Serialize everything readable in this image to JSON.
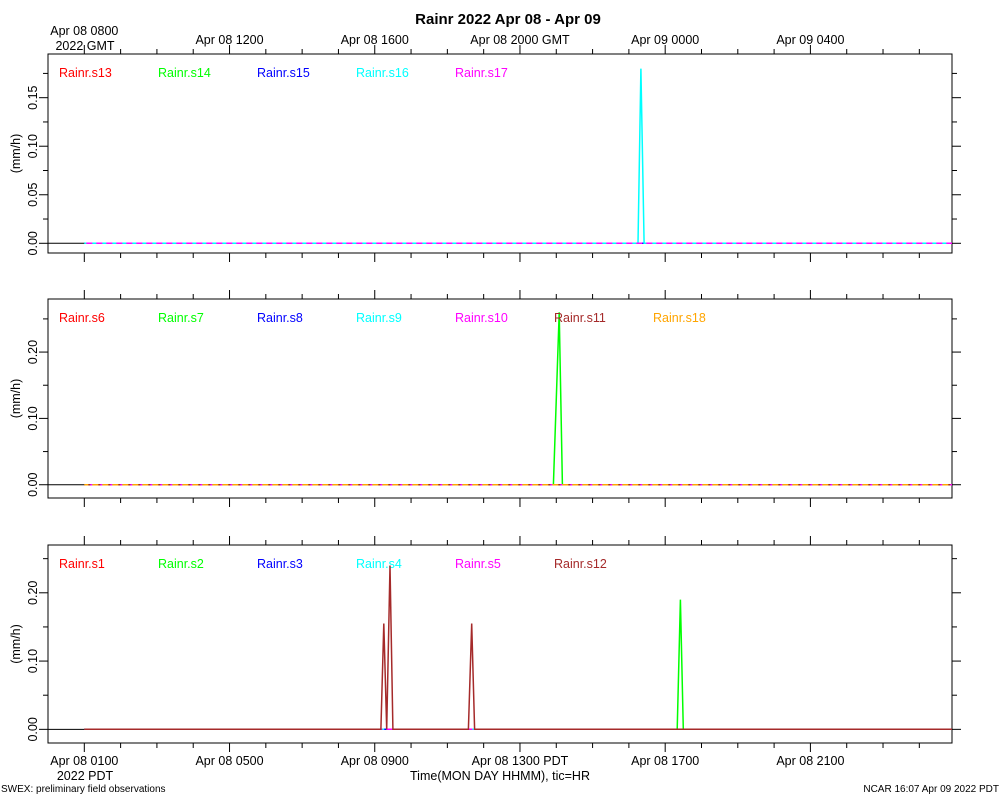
{
  "title": "Rainr 2022 Apr 08 - Apr 09",
  "top_axis": {
    "labels": [
      "Apr 08 0800",
      "Apr 08 1200",
      "Apr 08 1600",
      "Apr 08 2000 GMT",
      "Apr 09 0000",
      "Apr 09 0400"
    ],
    "year_label": "2022 GMT"
  },
  "bottom_axis": {
    "labels": [
      "Apr 08 0100",
      "Apr 08 0500",
      "Apr 08 0900",
      "Apr 08 1300 PDT",
      "Apr 08 1700",
      "Apr 08 2100"
    ],
    "year_label": "2022 PDT",
    "xlabel": "Time(MON DAY HHMM), tic=HR"
  },
  "footer": {
    "left": "SWEX: preliminary field observations",
    "right": "NCAR 16:07 Apr 09 2022 PDT"
  },
  "chart_data": [
    {
      "type": "line",
      "ylabel": "(mm/h)",
      "ylim": [
        -0.01,
        0.195
      ],
      "yticks": [
        "0.00",
        "0.05",
        "0.10",
        "0.15"
      ],
      "series": [
        {
          "name": "Rainr.s13",
          "color": "#ff0000",
          "x": [
            0,
            23.9
          ],
          "y": [
            0,
            0
          ]
        },
        {
          "name": "Rainr.s14",
          "color": "#00ff00",
          "x": [
            0,
            23.9
          ],
          "y": [
            0,
            0
          ]
        },
        {
          "name": "Rainr.s15",
          "color": "#0000ff",
          "x": [
            0,
            23.9
          ],
          "y": [
            0,
            0
          ]
        },
        {
          "name": "Rainr.s16",
          "color": "#00ffff",
          "x": [
            0,
            15.25,
            15.33,
            15.42,
            23.9
          ],
          "y": [
            0,
            0,
            0.18,
            0,
            0
          ]
        },
        {
          "name": "Rainr.s17",
          "color": "#ff00ff",
          "x": [
            0,
            23.9
          ],
          "y": [
            0,
            0
          ]
        }
      ]
    },
    {
      "type": "line",
      "ylabel": "(mm/h)",
      "ylim": [
        -0.02,
        0.28
      ],
      "yticks": [
        "0.00",
        "0.10",
        "0.20"
      ],
      "series": [
        {
          "name": "Rainr.s6",
          "color": "#ff0000",
          "x": [
            0,
            23.9
          ],
          "y": [
            0,
            0
          ]
        },
        {
          "name": "Rainr.s7",
          "color": "#00ff00",
          "x": [
            0,
            12.92,
            13.08,
            13.17,
            23.9
          ],
          "y": [
            0,
            0,
            0.26,
            0,
            0
          ]
        },
        {
          "name": "Rainr.s8",
          "color": "#0000ff",
          "x": [
            0,
            23.9
          ],
          "y": [
            0,
            0
          ]
        },
        {
          "name": "Rainr.s9",
          "color": "#00ffff",
          "x": [
            0,
            23.9
          ],
          "y": [
            0,
            0
          ]
        },
        {
          "name": "Rainr.s10",
          "color": "#ff00ff",
          "x": [
            0,
            23.9
          ],
          "y": [
            0,
            0
          ]
        },
        {
          "name": "Rainr.s11",
          "color": "#a52a2a",
          "x": [
            0,
            23.9
          ],
          "y": [
            0,
            0
          ]
        },
        {
          "name": "Rainr.s18",
          "color": "#ffa500",
          "x": [
            0,
            23.9
          ],
          "y": [
            0,
            0
          ]
        }
      ]
    },
    {
      "type": "line",
      "ylabel": "(mm/h)",
      "ylim": [
        -0.02,
        0.27
      ],
      "yticks": [
        "0.00",
        "0.10",
        "0.20"
      ],
      "series": [
        {
          "name": "Rainr.s1",
          "color": "#ff0000",
          "x": [
            0,
            23.9
          ],
          "y": [
            0,
            0
          ]
        },
        {
          "name": "Rainr.s2",
          "color": "#00ff00",
          "x": [
            0,
            16.33,
            16.42,
            16.5,
            23.9
          ],
          "y": [
            0,
            0,
            0.19,
            0,
            0
          ]
        },
        {
          "name": "Rainr.s3",
          "color": "#0000ff",
          "x": [
            0,
            23.9
          ],
          "y": [
            0,
            0
          ]
        },
        {
          "name": "Rainr.s4",
          "color": "#00ffff",
          "x": [
            0,
            23.9
          ],
          "y": [
            0,
            0
          ]
        },
        {
          "name": "Rainr.s5",
          "color": "#ff00ff",
          "x": [
            0,
            23.9
          ],
          "y": [
            0,
            0
          ]
        },
        {
          "name": "Rainr.s12",
          "color": "#a52a2a",
          "x": [
            0,
            8.17,
            8.25,
            8.33,
            8.42,
            8.5,
            8.58,
            10.58,
            10.67,
            10.75,
            23.9
          ],
          "y": [
            0,
            0,
            0.155,
            0,
            0.24,
            0,
            0,
            0,
            0.155,
            0,
            0
          ]
        }
      ]
    }
  ]
}
